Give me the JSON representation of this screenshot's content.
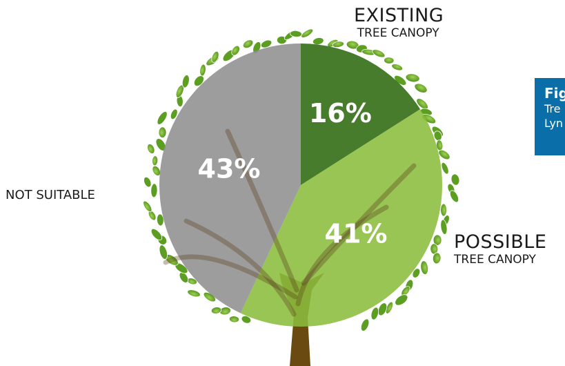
{
  "chart_data": {
    "type": "pie",
    "title": "",
    "slices": [
      {
        "label": "EXISTING TREE CANOPY",
        "value": 16,
        "value_label": "16%",
        "color": "#2f6a10"
      },
      {
        "label": "POSSIBLE TREE CANOPY",
        "value": 41,
        "value_label": "41%",
        "color": "#8bbd3c"
      },
      {
        "label": "NOT SUITABLE",
        "value": 43,
        "value_label": "43%",
        "color": "#8f8f8f"
      }
    ]
  },
  "labels": {
    "existing_big": "EXISTING",
    "existing_small": "TREE CANOPY",
    "not_suitable": "NOT SUITABLE",
    "possible_big": "POSSIBLE",
    "possible_small": "TREE CANOPY"
  },
  "figure_box": {
    "title": "Fig",
    "line1": "Tre",
    "line2": "Lyn",
    "color": "#0a6fa8"
  },
  "tree": {
    "leaf_color": "#6fae2e",
    "trunk_color": "#6b4a12"
  }
}
